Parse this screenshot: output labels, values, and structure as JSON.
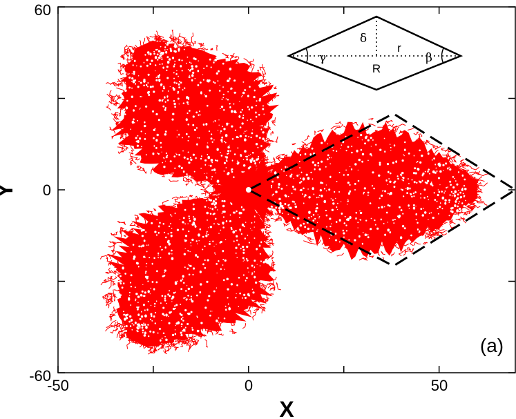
{
  "chart_data": {
    "type": "scatter",
    "title": "",
    "xlabel": "X",
    "ylabel": "Y",
    "xlim": [
      -50,
      70
    ],
    "ylim": [
      -60,
      60
    ],
    "x_ticks": [
      -50,
      0,
      50
    ],
    "y_ticks": [
      -60,
      0,
      60
    ],
    "x_tick_labels": [
      "-50",
      "0",
      "50"
    ],
    "y_tick_labels": [
      "-60",
      "0",
      "60"
    ],
    "grid": false,
    "panel_label": "(a)",
    "cluster": {
      "color": "#ff0000",
      "center": [
        0,
        0
      ],
      "arms": [
        {
          "direction_deg": 0,
          "extent": 60
        },
        {
          "direction_deg": 120,
          "extent": 55
        },
        {
          "direction_deg": 240,
          "extent": 58
        }
      ]
    },
    "rhombus_outline": {
      "style": "dashed",
      "color": "#000000",
      "vertices": [
        [
          0,
          0
        ],
        [
          38,
          25
        ],
        [
          70,
          0
        ],
        [
          38,
          -25
        ]
      ]
    },
    "inset_schematic": {
      "labels": {
        "delta": "δ",
        "gamma": "γ",
        "r": "r",
        "beta": "β",
        "R": "R"
      }
    }
  }
}
